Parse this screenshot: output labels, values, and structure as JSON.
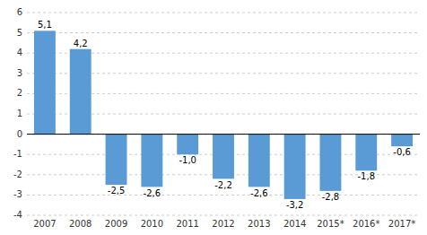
{
  "chart_data": {
    "type": "bar",
    "categories": [
      "2007",
      "2008",
      "2009",
      "2010",
      "2011",
      "2012",
      "2013",
      "2014",
      "2015*",
      "2016*",
      "2017*"
    ],
    "values": [
      5.1,
      4.2,
      -2.5,
      -2.6,
      -1.0,
      -2.2,
      -2.6,
      -3.2,
      -2.8,
      -1.8,
      -0.6
    ],
    "value_labels": [
      "5,1",
      "4,2",
      "-2,5",
      "-2,6",
      "-1,0",
      "-2,2",
      "-2,6",
      "-3,2",
      "-2,8",
      "-1,8",
      "-0,6"
    ],
    "data_labels": true,
    "color": "#5B9BD5",
    "ylim": [
      -4,
      6
    ],
    "yticks": [
      -4,
      -3,
      -2,
      -1,
      0,
      1,
      2,
      3,
      4,
      5,
      6
    ],
    "grid": true
  }
}
